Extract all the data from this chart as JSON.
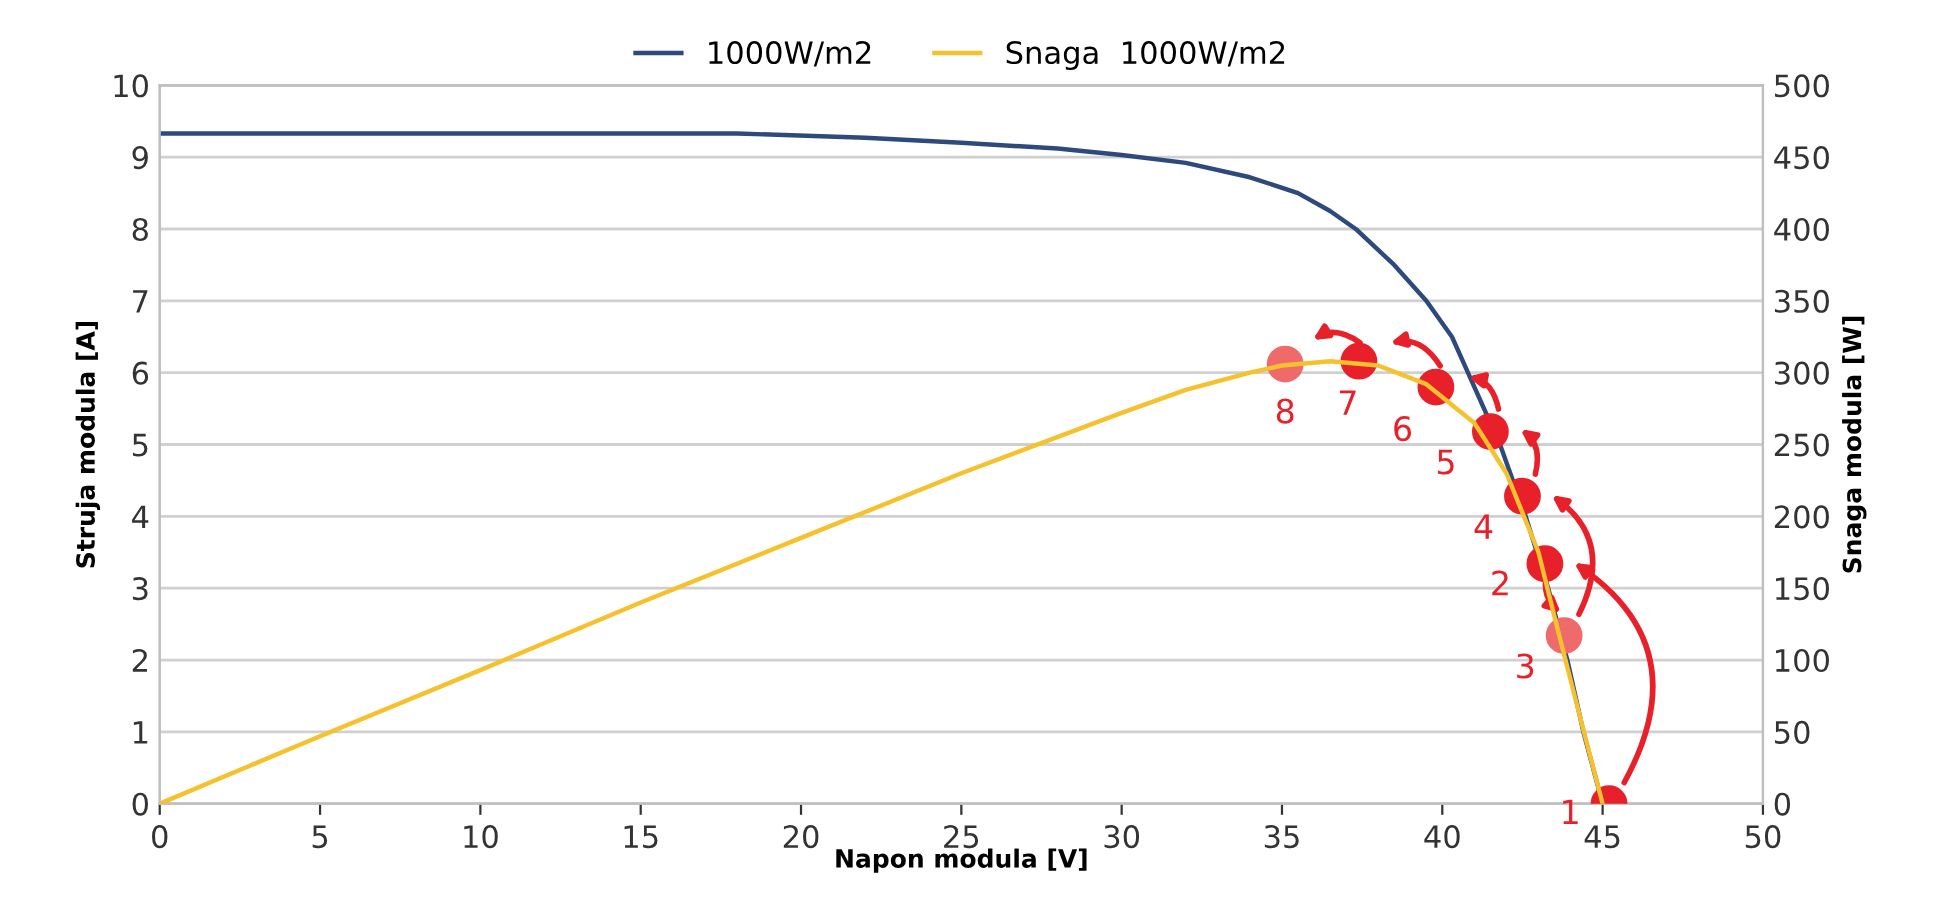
{
  "chart_data": {
    "type": "line",
    "xlabel": "Napon modula [V]",
    "ylabel": "Struja modula [A]",
    "y2label": "Snaga modula [W]",
    "xlim": [
      0,
      50
    ],
    "xticks": [
      0,
      5,
      10,
      15,
      20,
      25,
      30,
      35,
      40,
      45,
      50
    ],
    "ylim": [
      0,
      10
    ],
    "yticks": [
      0,
      1,
      2,
      3,
      4,
      5,
      6,
      7,
      8,
      9,
      10
    ],
    "y2lim": [
      0,
      500
    ],
    "y2ticks": [
      0,
      50,
      100,
      150,
      200,
      250,
      300,
      350,
      400,
      450,
      500
    ],
    "grid": "y",
    "legend": "top",
    "marker": "none",
    "series": [
      {
        "name": "1000W/m2",
        "color": "#2e4a7d",
        "axis": "y",
        "x": [
          0,
          10,
          18,
          22,
          25,
          28,
          30,
          32,
          34,
          35.5,
          36.5,
          37.3,
          38.5,
          39.5,
          40.3,
          40.8,
          41.8,
          42.6,
          43.3,
          43.9,
          44.4,
          45
        ],
        "values": [
          9.33,
          9.33,
          9.33,
          9.27,
          9.2,
          9.12,
          9.03,
          8.92,
          8.72,
          8.5,
          8.25,
          8.0,
          7.5,
          7.0,
          6.5,
          6.0,
          5.0,
          4.0,
          3.0,
          2.0,
          1.0,
          0
        ]
      },
      {
        "name": "Snaga  1000W/m2",
        "color": "#f5c12e",
        "axis": "y2",
        "x": [
          0,
          5,
          10,
          15,
          20,
          25,
          30,
          32,
          34,
          35,
          36.5,
          38,
          39.5,
          41,
          42,
          43,
          43.5,
          44.3,
          45
        ],
        "values": [
          0,
          47,
          93,
          140,
          185,
          230,
          272,
          288,
          300,
          305,
          308,
          305,
          292,
          265,
          230,
          175,
          130,
          60,
          0
        ]
      },
      {
        "type": "scatter",
        "axis": "y2",
        "marker": "circle",
        "x": [
          45.2,
          43.2,
          43.8,
          42.5,
          41.5,
          39.8,
          37.4,
          35.1
        ],
        "values": [
          0,
          167,
          117,
          214,
          259,
          290,
          308,
          306
        ],
        "colors": [
          "#e8202a",
          "#e8202a",
          "#ef6a6a",
          "#e8202a",
          "#e8202a",
          "#e8202a",
          "#e8202a",
          "#ef6a6a"
        ]
      }
    ],
    "annotations": [
      "1",
      "2",
      "3",
      "4",
      "5",
      "6",
      "7",
      "8"
    ]
  }
}
